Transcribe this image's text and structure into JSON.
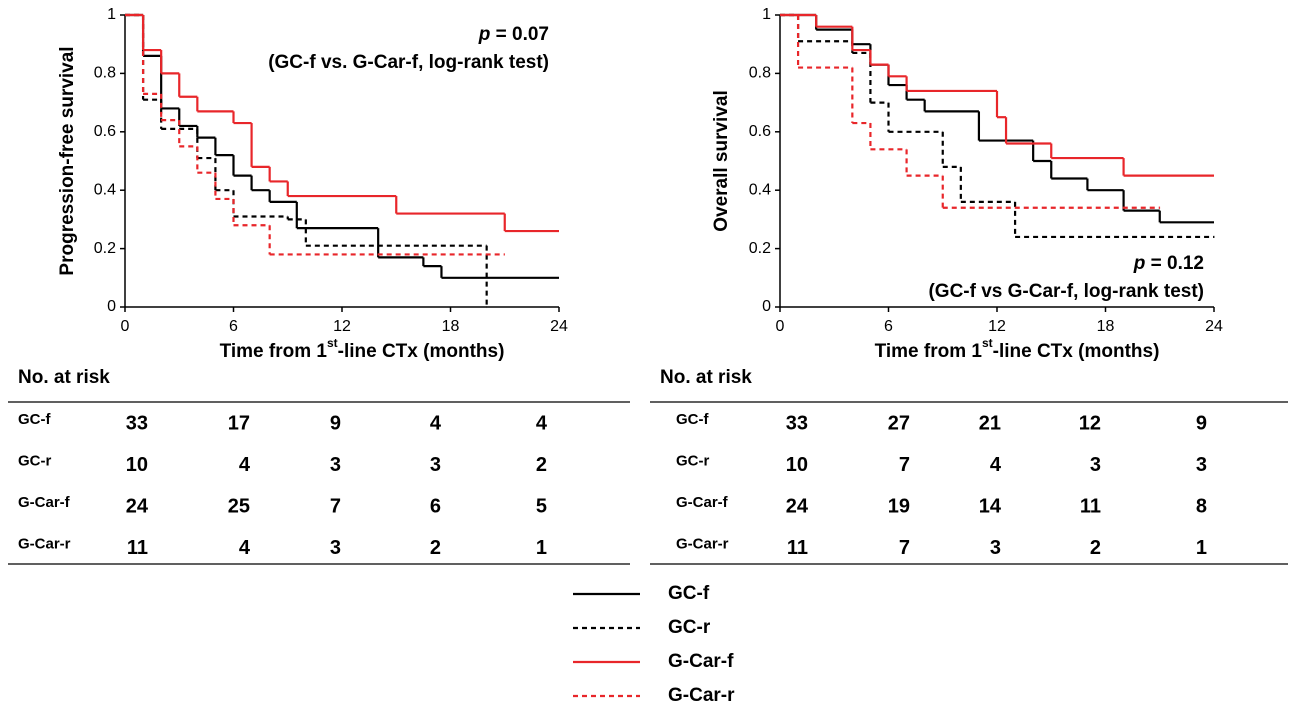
{
  "chart_data": [
    {
      "type": "step",
      "ylabel": "Progression-free survival",
      "xlabel": {
        "pre": "Time from 1",
        "sup": "st",
        "post": "-line CTx (months)"
      },
      "annotation": {
        "p_symbol": "p",
        "p_value": "= 0.07",
        "text": "(GC-f vs. G-Car-f, log-rank test)"
      },
      "annotation_corner": "upper right",
      "xlim": [
        0,
        24
      ],
      "xticks": [
        0,
        6,
        12,
        18,
        24
      ],
      "ylim": [
        0,
        1
      ],
      "yticks": [
        0,
        0.2,
        0.4,
        0.6,
        0.8,
        1
      ],
      "series": [
        {
          "name": "GC-f",
          "color": "#000000",
          "dashed": false,
          "x": [
            0,
            1,
            2,
            3,
            4,
            5,
            6,
            7,
            8,
            9.5,
            14,
            16.5,
            17.5,
            24
          ],
          "values": [
            1,
            0.86,
            0.68,
            0.62,
            0.58,
            0.52,
            0.45,
            0.4,
            0.36,
            0.27,
            0.17,
            0.14,
            0.1,
            0.1
          ]
        },
        {
          "name": "GC-r",
          "color": "#000000",
          "dashed": true,
          "x": [
            0,
            1,
            2,
            4,
            5,
            6,
            9,
            10,
            20
          ],
          "values": [
            1,
            0.71,
            0.61,
            0.51,
            0.4,
            0.31,
            0.3,
            0.21,
            0
          ]
        },
        {
          "name": "G-Car-f",
          "color": "#e8262a",
          "dashed": false,
          "x": [
            0,
            1,
            2,
            3,
            4,
            6,
            7,
            8,
            9,
            15,
            21,
            24
          ],
          "values": [
            1,
            0.88,
            0.8,
            0.72,
            0.67,
            0.63,
            0.48,
            0.43,
            0.38,
            0.32,
            0.26,
            0.26
          ]
        },
        {
          "name": "G-Car-r",
          "color": "#e8262a",
          "dashed": true,
          "x": [
            0,
            1,
            2,
            3,
            4,
            5,
            6,
            8,
            21
          ],
          "values": [
            1,
            0.73,
            0.64,
            0.55,
            0.46,
            0.37,
            0.28,
            0.18,
            0.18
          ]
        }
      ],
      "at_risk": {
        "title": "No. at risk",
        "rows": [
          {
            "label": "GC-f",
            "values": [
              33,
              17,
              9,
              4,
              4
            ]
          },
          {
            "label": "GC-r",
            "values": [
              10,
              4,
              3,
              3,
              2
            ]
          },
          {
            "label": "G-Car-f",
            "values": [
              24,
              25,
              7,
              6,
              5
            ]
          },
          {
            "label": "G-Car-r",
            "values": [
              11,
              4,
              3,
              2,
              1
            ]
          }
        ]
      }
    },
    {
      "type": "step",
      "ylabel": "Overall survival",
      "xlabel": {
        "pre": "Time from 1",
        "sup": "st",
        "post": "-line CTx (months)"
      },
      "annotation": {
        "p_symbol": "p",
        "p_value": "= 0.12",
        "text": "(GC-f vs G-Car-f, log-rank test)"
      },
      "annotation_corner": "lower right",
      "xlim": [
        0,
        24
      ],
      "xticks": [
        0,
        6,
        12,
        18,
        24
      ],
      "ylim": [
        0,
        1
      ],
      "yticks": [
        0,
        0.2,
        0.4,
        0.6,
        0.8,
        1
      ],
      "series": [
        {
          "name": "GC-f",
          "color": "#000000",
          "dashed": false,
          "x": [
            0,
            2,
            4,
            5,
            6,
            7,
            8,
            11,
            14,
            15,
            17,
            19,
            21,
            24
          ],
          "values": [
            1,
            0.95,
            0.9,
            0.83,
            0.76,
            0.71,
            0.67,
            0.57,
            0.5,
            0.44,
            0.4,
            0.33,
            0.29,
            0.29
          ]
        },
        {
          "name": "GC-r",
          "color": "#000000",
          "dashed": true,
          "x": [
            0,
            1,
            4,
            5,
            6,
            9,
            10,
            13,
            24
          ],
          "values": [
            1,
            0.91,
            0.87,
            0.7,
            0.6,
            0.48,
            0.36,
            0.24,
            0.24
          ]
        },
        {
          "name": "G-Car-f",
          "color": "#e8262a",
          "dashed": false,
          "x": [
            0,
            2,
            4,
            5,
            6,
            7,
            12,
            12.5,
            15,
            19,
            24
          ],
          "values": [
            1,
            0.96,
            0.88,
            0.83,
            0.79,
            0.74,
            0.65,
            0.56,
            0.51,
            0.45,
            0.45
          ]
        },
        {
          "name": "G-Car-r",
          "color": "#e8262a",
          "dashed": true,
          "x": [
            0,
            1,
            4,
            5,
            7,
            9,
            21
          ],
          "values": [
            1,
            0.82,
            0.63,
            0.54,
            0.45,
            0.34,
            0.34
          ]
        }
      ],
      "at_risk": {
        "title": "No. at risk",
        "rows": [
          {
            "label": "GC-f",
            "values": [
              33,
              27,
              21,
              12,
              9
            ]
          },
          {
            "label": "GC-r",
            "values": [
              10,
              7,
              4,
              3,
              3
            ]
          },
          {
            "label": "G-Car-f",
            "values": [
              24,
              19,
              14,
              11,
              8
            ]
          },
          {
            "label": "G-Car-r",
            "values": [
              11,
              7,
              3,
              2,
              1
            ]
          }
        ]
      }
    }
  ]
}
